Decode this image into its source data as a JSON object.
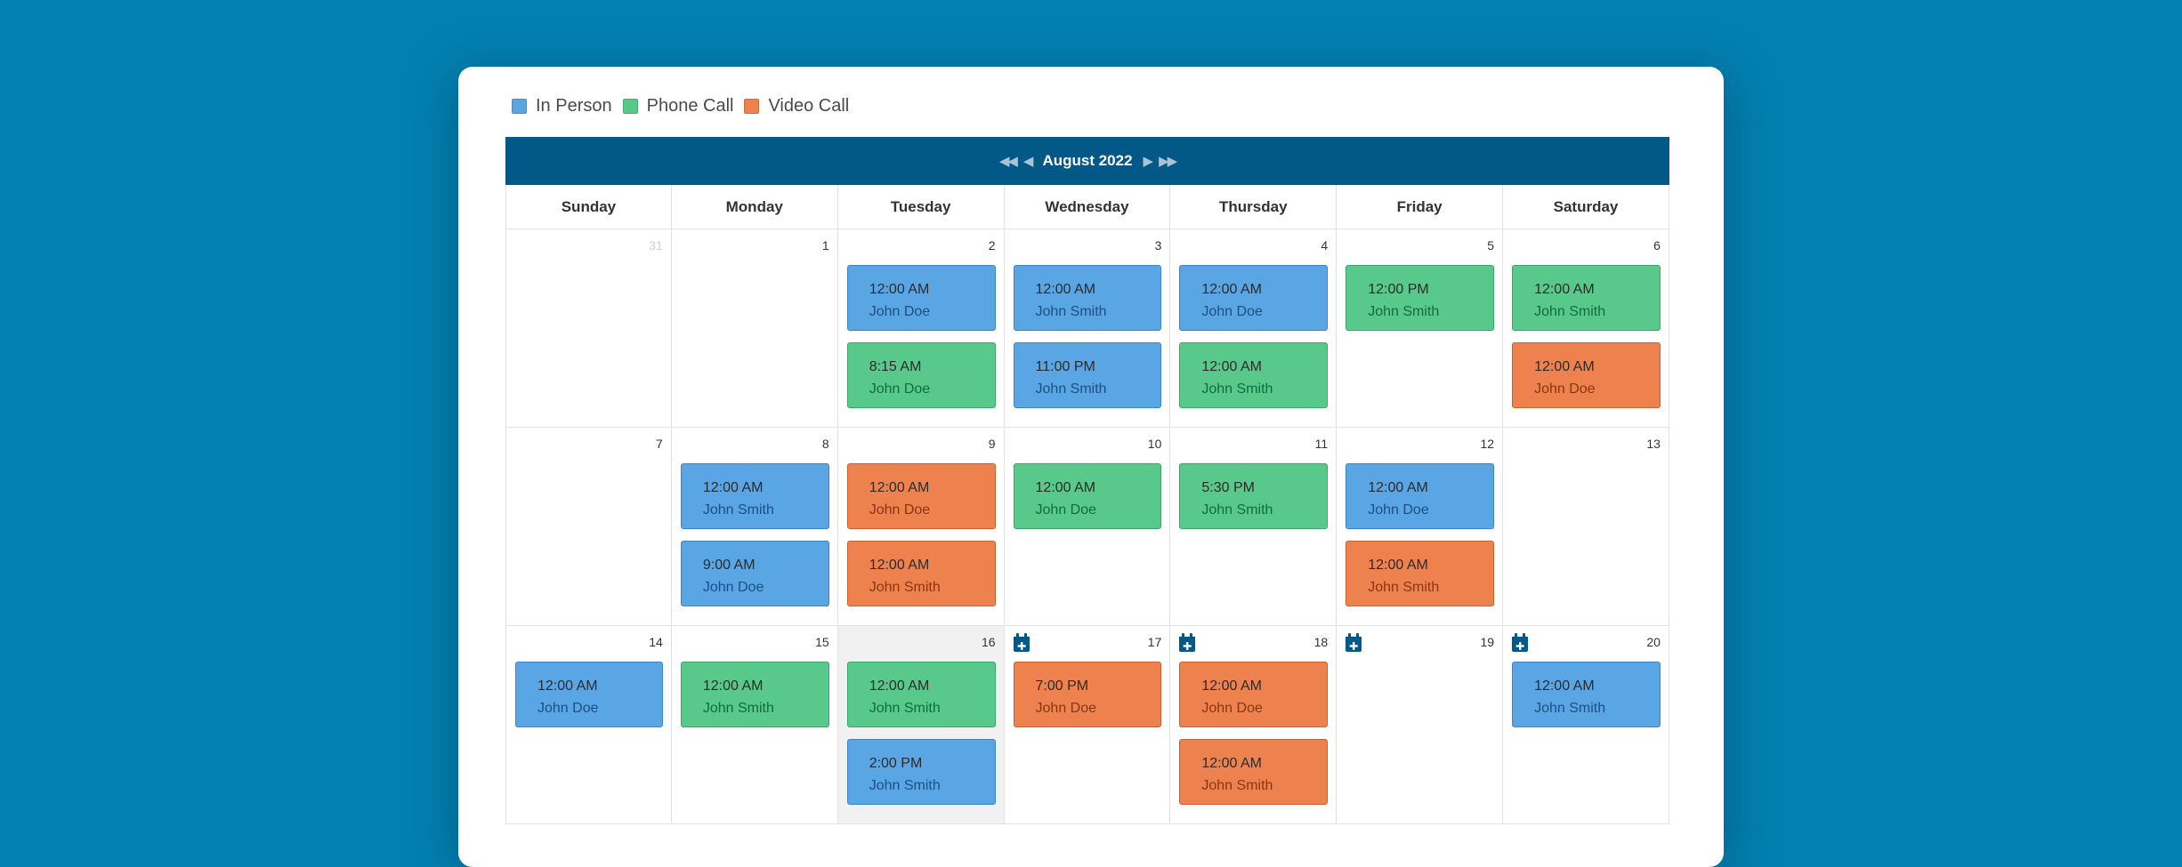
{
  "legend": [
    {
      "label": "In Person",
      "color": "#5aa6e5",
      "type": "in-person"
    },
    {
      "label": "Phone Call",
      "color": "#59c98b",
      "type": "phone"
    },
    {
      "label": "Video Call",
      "color": "#ee824e",
      "type": "video"
    }
  ],
  "calendar": {
    "title": "August 2022",
    "nav_icons": {
      "prev_year": "double-chevron-left-icon",
      "prev_month": "chevron-left-icon",
      "next_month": "chevron-right-icon",
      "next_year": "double-chevron-right-icon"
    },
    "days_of_week": [
      "Sunday",
      "Monday",
      "Tuesday",
      "Wednesday",
      "Thursday",
      "Friday",
      "Saturday"
    ],
    "weeks": [
      [
        {
          "day": "31",
          "other_month": true,
          "events": []
        },
        {
          "day": "1",
          "events": []
        },
        {
          "day": "2",
          "events": [
            {
              "time": "12:00 AM",
              "name": "John Doe",
              "type": "in-person"
            },
            {
              "time": "8:15 AM",
              "name": "John Doe",
              "type": "phone"
            }
          ]
        },
        {
          "day": "3",
          "events": [
            {
              "time": "12:00 AM",
              "name": "John Smith",
              "type": "in-person"
            },
            {
              "time": "11:00 PM",
              "name": "John Smith",
              "type": "in-person"
            }
          ]
        },
        {
          "day": "4",
          "events": [
            {
              "time": "12:00 AM",
              "name": "John Doe",
              "type": "in-person"
            },
            {
              "time": "12:00 AM",
              "name": "John Smith",
              "type": "phone"
            }
          ]
        },
        {
          "day": "5",
          "events": [
            {
              "time": "12:00 PM",
              "name": "John Smith",
              "type": "phone"
            }
          ]
        },
        {
          "day": "6",
          "events": [
            {
              "time": "12:00 AM",
              "name": "John Smith",
              "type": "phone"
            },
            {
              "time": "12:00 AM",
              "name": "John Doe",
              "type": "video"
            }
          ]
        }
      ],
      [
        {
          "day": "7",
          "events": []
        },
        {
          "day": "8",
          "events": [
            {
              "time": "12:00 AM",
              "name": "John Smith",
              "type": "in-person"
            },
            {
              "time": "9:00 AM",
              "name": "John Doe",
              "type": "in-person"
            }
          ]
        },
        {
          "day": "9",
          "events": [
            {
              "time": "12:00 AM",
              "name": "John Doe",
              "type": "video"
            },
            {
              "time": "12:00 AM",
              "name": "John Smith",
              "type": "video"
            }
          ]
        },
        {
          "day": "10",
          "events": [
            {
              "time": "12:00 AM",
              "name": "John Doe",
              "type": "phone"
            }
          ]
        },
        {
          "day": "11",
          "events": [
            {
              "time": "5:30 PM",
              "name": "John Smith",
              "type": "phone"
            }
          ]
        },
        {
          "day": "12",
          "events": [
            {
              "time": "12:00 AM",
              "name": "John Doe",
              "type": "in-person"
            },
            {
              "time": "12:00 AM",
              "name": "John Smith",
              "type": "video"
            }
          ]
        },
        {
          "day": "13",
          "events": []
        }
      ],
      [
        {
          "day": "14",
          "events": [
            {
              "time": "12:00 AM",
              "name": "John Doe",
              "type": "in-person"
            }
          ]
        },
        {
          "day": "15",
          "events": [
            {
              "time": "12:00 AM",
              "name": "John Smith",
              "type": "phone"
            }
          ]
        },
        {
          "day": "16",
          "today": true,
          "events": [
            {
              "time": "12:00 AM",
              "name": "John Smith",
              "type": "phone"
            },
            {
              "time": "2:00 PM",
              "name": "John Smith",
              "type": "in-person"
            }
          ]
        },
        {
          "day": "17",
          "add": true,
          "events": [
            {
              "time": "7:00 PM",
              "name": "John Doe",
              "type": "video"
            }
          ]
        },
        {
          "day": "18",
          "add": true,
          "events": [
            {
              "time": "12:00 AM",
              "name": "John Doe",
              "type": "video"
            },
            {
              "time": "12:00 AM",
              "name": "John Smith",
              "type": "video"
            }
          ]
        },
        {
          "day": "19",
          "add": true,
          "events": []
        },
        {
          "day": "20",
          "add": true,
          "events": [
            {
              "time": "12:00 AM",
              "name": "John Smith",
              "type": "in-person"
            }
          ]
        }
      ]
    ]
  }
}
